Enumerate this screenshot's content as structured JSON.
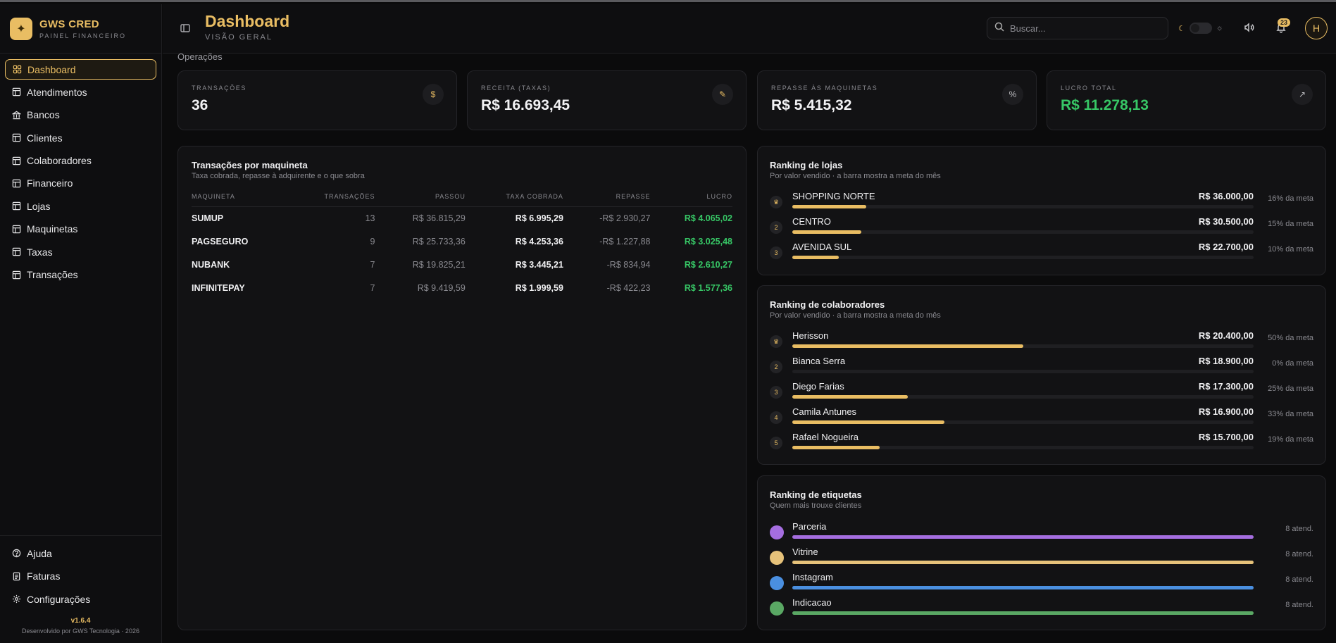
{
  "brand": {
    "name": "GWS CRED",
    "subtitle": "PAINEL FINANCEIRO"
  },
  "nav": {
    "items": [
      {
        "label": "Dashboard",
        "icon": "grid-icon",
        "active": true
      },
      {
        "label": "Atendimentos",
        "icon": "table-icon"
      },
      {
        "label": "Bancos",
        "icon": "bank-icon"
      },
      {
        "label": "Clientes",
        "icon": "table-icon"
      },
      {
        "label": "Colaboradores",
        "icon": "table-icon"
      },
      {
        "label": "Financeiro",
        "icon": "table-icon"
      },
      {
        "label": "Lojas",
        "icon": "table-icon"
      },
      {
        "label": "Maquinetas",
        "icon": "table-icon"
      },
      {
        "label": "Taxas",
        "icon": "table-icon"
      },
      {
        "label": "Transações",
        "icon": "table-icon"
      }
    ],
    "bottom": [
      {
        "label": "Ajuda",
        "icon": "help-icon"
      },
      {
        "label": "Faturas",
        "icon": "invoice-icon"
      },
      {
        "label": "Configurações",
        "icon": "gear-icon"
      }
    ]
  },
  "footer": {
    "version": "v1.6.4",
    "developer": "Desenvolvido por GWS Tecnologia · 2026"
  },
  "header": {
    "title": "Dashboard",
    "subtitle": "VISÃO GERAL",
    "search_placeholder": "Buscar...",
    "notifications": "23",
    "avatar_initial": "H"
  },
  "section": {
    "label": "Operações"
  },
  "kpis": [
    {
      "label": "TRANSAÇÕES",
      "value": "36",
      "icon": "dollar-icon"
    },
    {
      "label": "RECEITA (TAXAS)",
      "value": "R$ 16.693,45",
      "icon": "hand-coins-icon"
    },
    {
      "label": "REPASSE ÀS MAQUINETAS",
      "value": "R$ 5.415,32",
      "icon": "percent-icon"
    },
    {
      "label": "LUCRO TOTAL",
      "value": "R$ 11.278,13",
      "icon": "trending-up-icon"
    }
  ],
  "machines": {
    "title": "Transações por maquineta",
    "subtitle": "Taxa cobrada, repasse à adquirente e o que sobra",
    "columns": [
      "MAQUINETA",
      "TRANSAÇÕES",
      "PASSOU",
      "TAXA COBRADA",
      "REPASSE",
      "LUCRO"
    ],
    "rows": [
      [
        "SUMUP",
        "13",
        "R$ 36.815,29",
        "R$ 6.995,29",
        "-R$ 2.930,27",
        "R$ 4.065,02"
      ],
      [
        "PAGSEGURO",
        "9",
        "R$ 25.733,36",
        "R$ 4.253,36",
        "-R$ 1.227,88",
        "R$ 3.025,48"
      ],
      [
        "NUBANK",
        "7",
        "R$ 19.825,21",
        "R$ 3.445,21",
        "-R$ 834,94",
        "R$ 2.610,27"
      ],
      [
        "INFINITEPAY",
        "7",
        "R$ 9.419,59",
        "R$ 1.999,59",
        "-R$ 422,23",
        "R$ 1.577,36"
      ]
    ]
  },
  "stores": {
    "title": "Ranking de lojas",
    "subtitle": "Por valor vendido · a barra mostra a meta do mês",
    "items": [
      {
        "rank": "",
        "icon": "trophy-icon",
        "name": "SHOPPING NORTE",
        "value": "R$ 36.000,00",
        "pct": "16% da meta",
        "progress": 0.16
      },
      {
        "rank": "2",
        "name": "CENTRO",
        "value": "R$ 30.500,00",
        "pct": "15% da meta",
        "progress": 0.15
      },
      {
        "rank": "3",
        "name": "AVENIDA SUL",
        "value": "R$ 22.700,00",
        "pct": "10% da meta",
        "progress": 0.1
      }
    ]
  },
  "collaborators": {
    "title": "Ranking de colaboradores",
    "subtitle": "Por valor vendido · a barra mostra a meta do mês",
    "items": [
      {
        "rank": "",
        "icon": "trophy-icon",
        "name": "Herisson",
        "value": "R$ 20.400,00",
        "pct": "50% da meta",
        "progress": 0.5
      },
      {
        "rank": "2",
        "name": "Bianca Serra",
        "value": "R$ 18.900,00",
        "pct": "0% da meta",
        "progress": 0
      },
      {
        "rank": "3",
        "name": "Diego Farias",
        "value": "R$ 17.300,00",
        "pct": "25% da meta",
        "progress": 0.25
      },
      {
        "rank": "4",
        "name": "Camila Antunes",
        "value": "R$ 16.900,00",
        "pct": "33% da meta",
        "progress": 0.33
      },
      {
        "rank": "5",
        "name": "Rafael Nogueira",
        "value": "R$ 15.700,00",
        "pct": "19% da meta",
        "progress": 0.19
      }
    ]
  },
  "tags": {
    "title": "Ranking de etiquetas",
    "subtitle": "Quem mais trouxe clientes",
    "items": [
      {
        "name": "Parceria",
        "count": "8 atend.",
        "color": "#a56ee0",
        "progress": 1
      },
      {
        "name": "Vitrine",
        "count": "8 atend.",
        "color": "#e6c27a",
        "progress": 1
      },
      {
        "name": "Instagram",
        "count": "8 atend.",
        "color": "#4a8fe0",
        "progress": 1
      },
      {
        "name": "Indicacao",
        "count": "8 atend.",
        "color": "#5aa864",
        "progress": 1
      }
    ]
  }
}
